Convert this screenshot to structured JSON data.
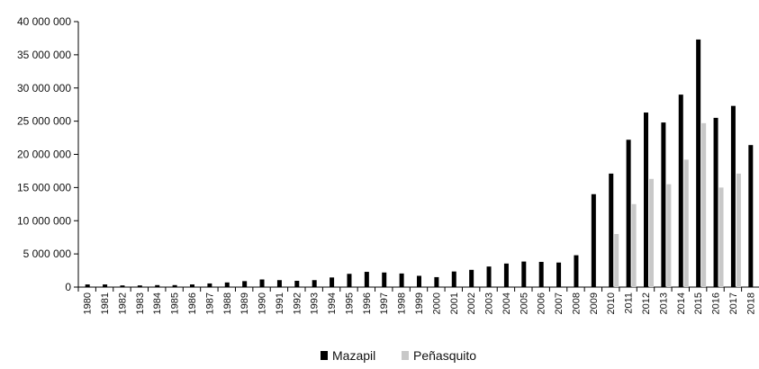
{
  "chart_data": {
    "type": "bar",
    "categories": [
      "1980",
      "1981",
      "1982",
      "1983",
      "1984",
      "1985",
      "1986",
      "1987",
      "1988",
      "1989",
      "1990",
      "1991",
      "1992",
      "1993",
      "1994",
      "1995",
      "1996",
      "1997",
      "1998",
      "1999",
      "2000",
      "2001",
      "2002",
      "2003",
      "2004",
      "2005",
      "2006",
      "2007",
      "2008",
      "2009",
      "2010",
      "2011",
      "2012",
      "2013",
      "2014",
      "2015",
      "2016",
      "2017",
      "2018"
    ],
    "series": [
      {
        "name": "Mazapil",
        "color": "#000000",
        "values": [
          400000,
          400000,
          250000,
          250000,
          300000,
          300000,
          400000,
          550000,
          700000,
          900000,
          1150000,
          1050000,
          950000,
          1050000,
          1450000,
          2000000,
          2300000,
          2200000,
          2050000,
          1700000,
          1500000,
          2350000,
          2600000,
          3100000,
          3550000,
          3850000,
          3800000,
          3700000,
          4800000,
          14000000,
          17100000,
          22200000,
          26300000,
          24800000,
          29000000,
          37300000,
          25500000,
          27300000,
          21400000
        ]
      },
      {
        "name": "Peñasquito",
        "color": "#c8c8c8",
        "values": [
          0,
          0,
          0,
          0,
          0,
          0,
          0,
          0,
          0,
          0,
          0,
          0,
          0,
          0,
          0,
          0,
          0,
          0,
          0,
          0,
          0,
          0,
          0,
          0,
          0,
          0,
          0,
          0,
          0,
          0,
          8000000,
          12500000,
          16300000,
          15500000,
          19200000,
          24700000,
          15000000,
          17100000,
          0
        ]
      }
    ],
    "y_ticks": [
      "0",
      "5 000 000",
      "10 000 000",
      "15 000 000",
      "20 000 000",
      "25 000 000",
      "30 000 000",
      "35 000 000",
      "40 000 000"
    ],
    "ylim": [
      0,
      40000000
    ],
    "xlabel": "",
    "ylabel": "",
    "grid": false,
    "legend": "bottom-center"
  }
}
